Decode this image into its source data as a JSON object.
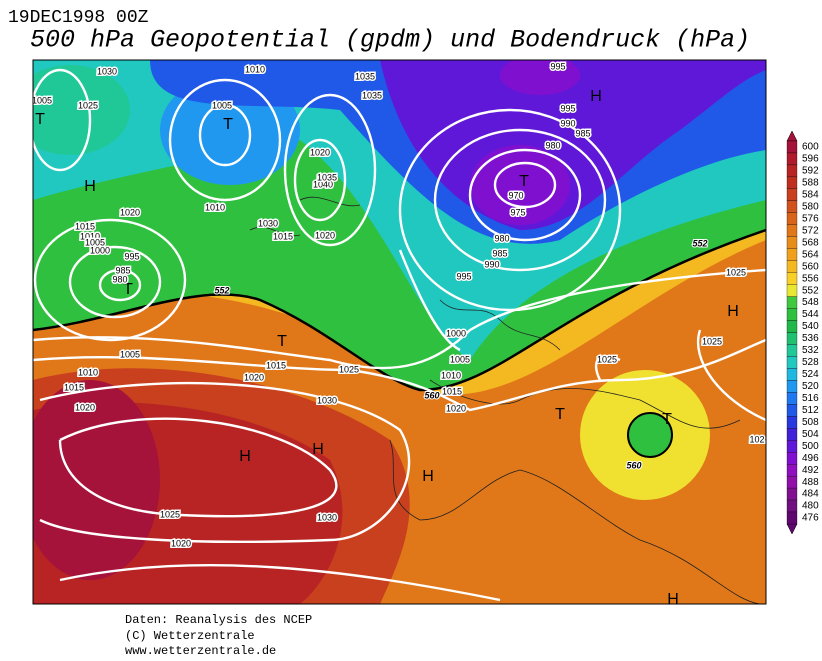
{
  "header": {
    "date": "19DEC1998 00Z",
    "title": "500 hPa Geopotential (gpdm) und Bodendruck (hPa)"
  },
  "legend": {
    "levels": [
      {
        "label": "600",
        "color": "#a5123a"
      },
      {
        "label": "596",
        "color": "#b01a2c"
      },
      {
        "label": "592",
        "color": "#b82424"
      },
      {
        "label": "588",
        "color": "#c02e20"
      },
      {
        "label": "584",
        "color": "#c8401e"
      },
      {
        "label": "580",
        "color": "#d0521c"
      },
      {
        "label": "576",
        "color": "#d8641a"
      },
      {
        "label": "572",
        "color": "#e0781a"
      },
      {
        "label": "568",
        "color": "#e88c1a"
      },
      {
        "label": "564",
        "color": "#f0a01a"
      },
      {
        "label": "560",
        "color": "#f4b820"
      },
      {
        "label": "556",
        "color": "#f8d028"
      },
      {
        "label": "552",
        "color": "#e8e830"
      },
      {
        "label": "548",
        "color": "#40c840"
      },
      {
        "label": "544",
        "color": "#30c040"
      },
      {
        "label": "540",
        "color": "#20b848"
      },
      {
        "label": "536",
        "color": "#20c070"
      },
      {
        "label": "532",
        "color": "#20c898"
      },
      {
        "label": "528",
        "color": "#20c8c0"
      },
      {
        "label": "524",
        "color": "#20b8e0"
      },
      {
        "label": "520",
        "color": "#2098f0"
      },
      {
        "label": "516",
        "color": "#2078f0"
      },
      {
        "label": "512",
        "color": "#2058e8"
      },
      {
        "label": "508",
        "color": "#2838e0"
      },
      {
        "label": "504",
        "color": "#4020d8"
      },
      {
        "label": "500",
        "color": "#6018d8"
      },
      {
        "label": "496",
        "color": "#8010d0"
      },
      {
        "label": "492",
        "color": "#9010c0"
      },
      {
        "label": "488",
        "color": "#9010a8"
      },
      {
        "label": "484",
        "color": "#801090"
      },
      {
        "label": "480",
        "color": "#701080"
      },
      {
        "label": "476",
        "color": "#600870"
      }
    ]
  },
  "map": {
    "pressure_centers": [
      "T",
      "T",
      "H",
      "T",
      "H",
      "T",
      "T",
      "H",
      "H",
      "H",
      "H",
      "T",
      "T",
      "H"
    ],
    "isobar_labels": [
      "1030",
      "1010",
      "1035",
      "1035",
      "995",
      "995",
      "990",
      "985",
      "980",
      "970",
      "975",
      "980",
      "985",
      "990",
      "995",
      "1005",
      "1025",
      "1005",
      "1020",
      "1040",
      "1035",
      "1010",
      "1020",
      "1015",
      "1010",
      "1005",
      "1000",
      "995",
      "985",
      "980",
      "1030",
      "1015",
      "1020",
      "1025",
      "1025",
      "1025",
      "1005",
      "1010",
      "1015",
      "1020",
      "1020",
      "1015",
      "1025",
      "1030",
      "1000",
      "1005",
      "1010",
      "1015",
      "1020",
      "1025",
      "1030",
      "1020",
      "102"
    ],
    "geopotential_labels": [
      "552",
      "552",
      "560",
      "560"
    ]
  },
  "footer": {
    "lines": [
      "Daten: Reanalysis des NCEP",
      "(C) Wetterzentrale",
      "www.wetterzentrale.de"
    ]
  }
}
